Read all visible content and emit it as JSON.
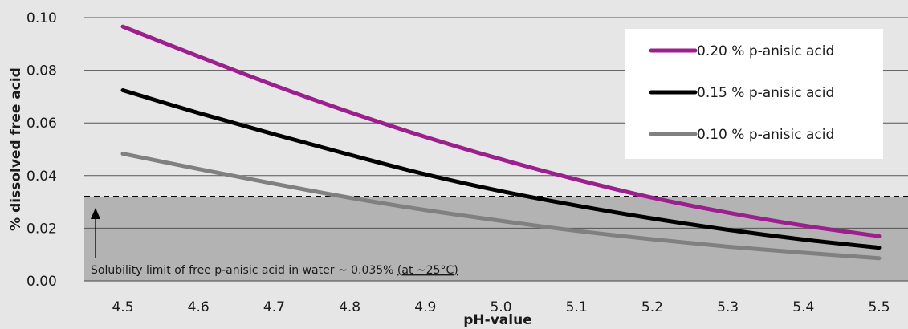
{
  "chart_data": {
    "type": "line",
    "xlabel": "pH-value",
    "ylabel": "% dissolved free acid",
    "x": [
      4.5,
      4.6,
      4.7,
      4.8,
      4.9,
      5.0,
      5.1,
      5.2,
      5.3,
      5.4,
      5.5
    ],
    "x_tick_labels": [
      "4.5",
      "4.6",
      "4.7",
      "4.8",
      "4.9",
      "5.0",
      "5.1",
      "5.2",
      "5.3",
      "5.4",
      "5.5"
    ],
    "y_ticks": [
      0.0,
      0.02,
      0.04,
      0.06,
      0.08,
      0.1
    ],
    "y_tick_labels": [
      "0.00",
      "0.02",
      "0.04",
      "0.06",
      "0.08",
      "0.10"
    ],
    "ylim": [
      0,
      0.1
    ],
    "xlim": [
      4.5,
      5.5
    ],
    "grid": "horizontal",
    "legend_position": "top-right",
    "series": [
      {
        "name": "0.20 % p-anisic acid",
        "color": "#9b1f8c",
        "values": [
          0.0966,
          0.0853,
          0.0743,
          0.0641,
          0.0547,
          0.0462,
          0.0385,
          0.0316,
          0.0259,
          0.021,
          0.017
        ]
      },
      {
        "name": "0.15 % p-anisic acid",
        "color": "#000000",
        "values": [
          0.0724,
          0.0638,
          0.0557,
          0.0479,
          0.0405,
          0.0341,
          0.0286,
          0.0237,
          0.0194,
          0.0157,
          0.0126
        ]
      },
      {
        "name": "0.10 % p-anisic acid",
        "color": "#808080",
        "values": [
          0.0483,
          0.0425,
          0.0369,
          0.0316,
          0.0269,
          0.0228,
          0.019,
          0.0158,
          0.013,
          0.0107,
          0.0086
        ]
      }
    ],
    "threshold": {
      "value": 0.032,
      "label_main": "Solubility limit of free p-anisic acid in water ~ 0.035% ",
      "label_underlined": "(at ~25°C)",
      "band_color": "#b3b3b3"
    }
  }
}
